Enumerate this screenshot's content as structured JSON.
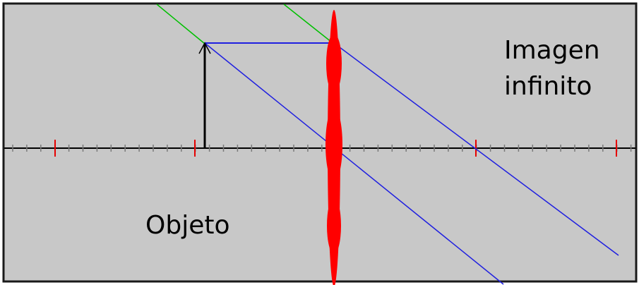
{
  "diagram": {
    "labels": {
      "image_line1": "Imagen",
      "image_line2": "infinito",
      "object": "Objeto"
    },
    "colors": {
      "background": "#c8c8c8",
      "frame": "#1a1a1a",
      "axis": "#000000",
      "minor_tick": "#7a7a7a",
      "focal_tick": "#e60000",
      "lens": "#ff0000",
      "object_arrow": "#000000",
      "incident_ray": "#00c000",
      "refracted_ray": "#1f1fe0"
    }
  }
}
